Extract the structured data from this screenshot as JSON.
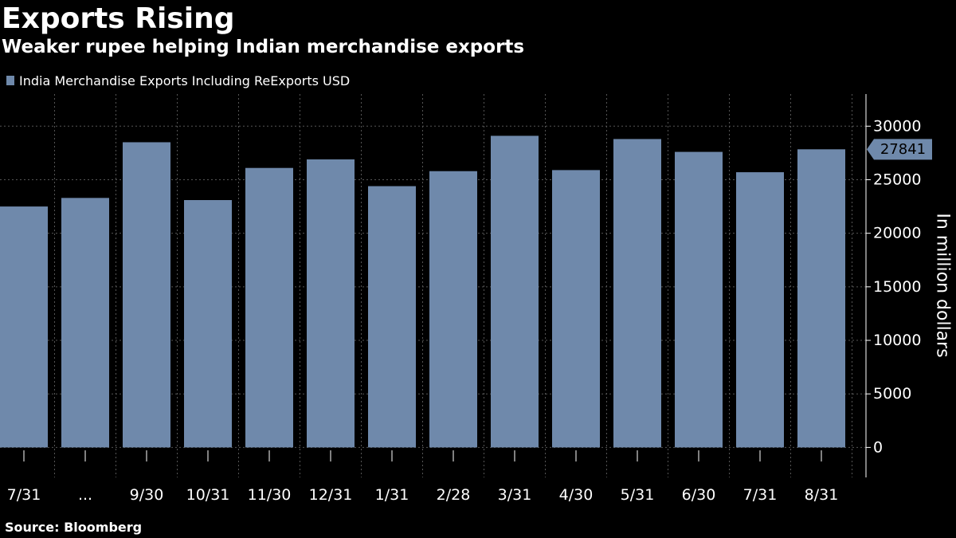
{
  "title": "Exports Rising",
  "subtitle": "Weaker rupee helping Indian merchandise exports",
  "source": "Source: Bloomberg",
  "colors": {
    "background": "#000000",
    "bar": "#6f89ab",
    "text": "#ffffff",
    "grid": "#555555"
  },
  "chart_data": {
    "type": "bar",
    "categories": [
      "7/31",
      "...",
      "9/30",
      "10/31",
      "11/30",
      "12/31",
      "1/31",
      "2/28",
      "3/31",
      "4/30",
      "5/31",
      "6/30",
      "7/31",
      "8/31"
    ],
    "series": [
      {
        "name": "India Merchandise Exports Including ReExports USD",
        "values": [
          22500,
          23300,
          28500,
          23100,
          26100,
          26900,
          24400,
          25800,
          29100,
          25900,
          28800,
          27600,
          25700,
          27841
        ]
      }
    ],
    "ylabel": "In million dollars",
    "ylim": [
      -2800,
      33000
    ],
    "yticks": [
      0,
      5000,
      10000,
      15000,
      20000,
      25000,
      30000
    ],
    "ytick_labels": [
      "0",
      "5000",
      "10000",
      "15000",
      "20000",
      "25000",
      "30000"
    ],
    "last_value_label": "27841",
    "y_axis_side": "right",
    "legend_position": "top-left",
    "grid": true
  }
}
